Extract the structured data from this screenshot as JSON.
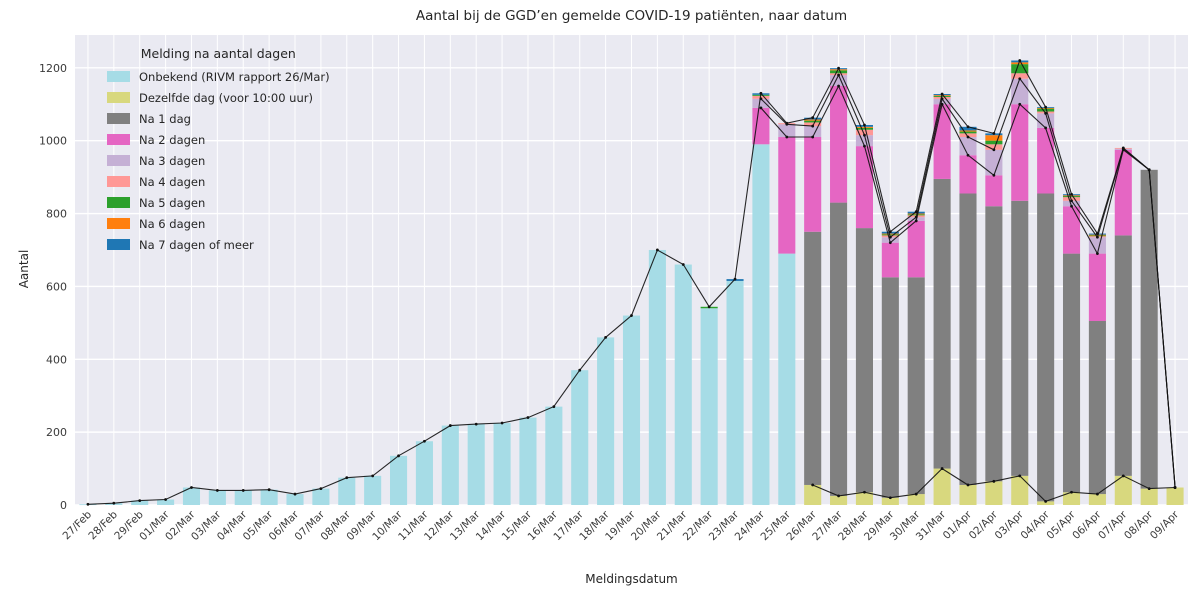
{
  "chart_data": {
    "type": "bar",
    "stacked": true,
    "title": "Aantal bij de GGD’en gemelde COVID-19 patiënten, naar datum",
    "xlabel": "Meldingsdatum",
    "ylabel": "Aantal",
    "ylim": [
      0,
      1290
    ],
    "yticks": [
      0,
      200,
      400,
      600,
      800,
      1000,
      1200
    ],
    "grid": true,
    "plot_background": "#eaeaf2",
    "grid_color": "#ffffff",
    "line_color": "#111111",
    "legend_title": "Melding na aantal dagen",
    "legend_position": "upper left",
    "categories": [
      "27/Feb",
      "28/Feb",
      "29/Feb",
      "01/Mar",
      "02/Mar",
      "03/Mar",
      "04/Mar",
      "05/Mar",
      "06/Mar",
      "07/Mar",
      "08/Mar",
      "09/Mar",
      "10/Mar",
      "11/Mar",
      "12/Mar",
      "13/Mar",
      "14/Mar",
      "15/Mar",
      "16/Mar",
      "17/Mar",
      "18/Mar",
      "19/Mar",
      "20/Mar",
      "21/Mar",
      "22/Mar",
      "23/Mar",
      "24/Mar",
      "25/Mar",
      "26/Mar",
      "27/Mar",
      "28/Mar",
      "29/Mar",
      "30/Mar",
      "31/Mar",
      "01/Apr",
      "02/Apr",
      "03/Apr",
      "04/Apr",
      "05/Apr",
      "06/Apr",
      "07/Apr",
      "08/Apr",
      "09/Apr"
    ],
    "series": [
      {
        "name": "Onbekend (RIVM rapport 26/Mar)",
        "color": "#a6dce6",
        "values": [
          2,
          5,
          12,
          15,
          48,
          40,
          40,
          42,
          30,
          45,
          75,
          80,
          135,
          175,
          218,
          222,
          225,
          240,
          270,
          370,
          460,
          520,
          700,
          660,
          540,
          615,
          990,
          690,
          0,
          0,
          0,
          0,
          0,
          0,
          0,
          0,
          0,
          0,
          0,
          0,
          0,
          0,
          0
        ]
      },
      {
        "name": "Dezelfde dag (voor 10:00 uur)",
        "color": "#d8d87e",
        "values": [
          0,
          0,
          0,
          0,
          0,
          0,
          0,
          0,
          0,
          0,
          0,
          0,
          0,
          0,
          0,
          0,
          0,
          0,
          0,
          0,
          0,
          0,
          0,
          0,
          0,
          0,
          0,
          0,
          55,
          25,
          35,
          20,
          30,
          100,
          55,
          65,
          80,
          10,
          35,
          30,
          80,
          45,
          48
        ]
      },
      {
        "name": "Na 1 dag",
        "color": "#808080",
        "values": [
          0,
          0,
          0,
          0,
          0,
          0,
          0,
          0,
          0,
          0,
          0,
          0,
          0,
          0,
          0,
          0,
          0,
          0,
          0,
          0,
          0,
          0,
          0,
          0,
          0,
          0,
          0,
          0,
          695,
          805,
          725,
          605,
          595,
          795,
          800,
          755,
          755,
          845,
          655,
          475,
          660,
          875,
          0
        ]
      },
      {
        "name": "Na 2 dagen",
        "color": "#e566c3",
        "values": [
          0,
          0,
          0,
          0,
          0,
          0,
          0,
          0,
          0,
          0,
          0,
          0,
          0,
          0,
          0,
          0,
          0,
          0,
          0,
          0,
          0,
          0,
          0,
          0,
          0,
          0,
          100,
          320,
          260,
          320,
          225,
          95,
          155,
          205,
          105,
          85,
          265,
          180,
          130,
          185,
          235,
          0,
          0
        ]
      },
      {
        "name": "Na 3 dagen",
        "color": "#c5b0d5",
        "values": [
          0,
          0,
          0,
          0,
          0,
          0,
          0,
          0,
          0,
          0,
          0,
          0,
          0,
          0,
          0,
          0,
          0,
          0,
          0,
          0,
          0,
          0,
          0,
          0,
          0,
          0,
          25,
          35,
          30,
          30,
          30,
          15,
          10,
          15,
          50,
          70,
          70,
          40,
          15,
          45,
          3,
          0,
          0
        ]
      },
      {
        "name": "Na 4 dagen",
        "color": "#ff9896",
        "values": [
          0,
          0,
          0,
          0,
          0,
          0,
          0,
          0,
          0,
          0,
          0,
          0,
          0,
          0,
          0,
          0,
          0,
          0,
          0,
          0,
          0,
          0,
          0,
          0,
          0,
          0,
          8,
          3,
          10,
          5,
          15,
          5,
          5,
          5,
          10,
          15,
          15,
          5,
          10,
          3,
          2,
          0,
          0
        ]
      },
      {
        "name": "Na 5 dagen",
        "color": "#2ca02c",
        "values": [
          0,
          0,
          0,
          0,
          0,
          0,
          0,
          0,
          0,
          0,
          0,
          0,
          0,
          0,
          0,
          0,
          0,
          0,
          0,
          0,
          0,
          0,
          0,
          0,
          4,
          0,
          3,
          0,
          5,
          8,
          5,
          3,
          3,
          3,
          5,
          10,
          25,
          8,
          3,
          2,
          0,
          0,
          0
        ]
      },
      {
        "name": "Na 6 dagen",
        "color": "#ff7f0e",
        "values": [
          0,
          0,
          0,
          0,
          0,
          0,
          0,
          0,
          0,
          0,
          0,
          0,
          0,
          0,
          0,
          0,
          0,
          0,
          0,
          0,
          0,
          0,
          0,
          0,
          0,
          0,
          0,
          0,
          3,
          3,
          3,
          2,
          2,
          2,
          3,
          15,
          5,
          2,
          2,
          2,
          0,
          0,
          0
        ]
      },
      {
        "name": "Na 7 dagen of meer",
        "color": "#1f77b4",
        "values": [
          0,
          0,
          0,
          0,
          0,
          0,
          0,
          0,
          0,
          0,
          0,
          0,
          0,
          0,
          0,
          0,
          0,
          0,
          0,
          0,
          0,
          0,
          0,
          0,
          0,
          5,
          4,
          0,
          5,
          3,
          5,
          5,
          5,
          3,
          10,
          5,
          5,
          2,
          3,
          3,
          0,
          0,
          0
        ]
      }
    ],
    "overlay_lines": [
      {
        "name": "total-line",
        "series_upto": 9,
        "start_index": 0
      },
      {
        "name": "cumulative-through-na3-line",
        "series_upto": 5,
        "start_index": 26
      },
      {
        "name": "cumulative-through-na2-line",
        "series_upto": 4,
        "start_index": 26
      },
      {
        "name": "same-day-line",
        "series_upto": 2,
        "start_index": 28
      }
    ]
  }
}
